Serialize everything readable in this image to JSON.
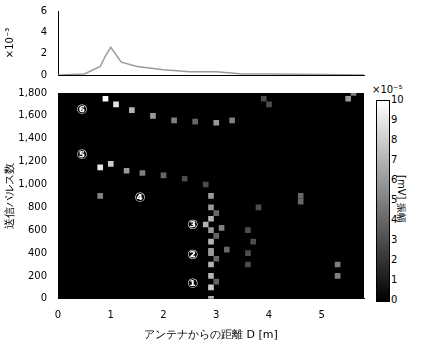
{
  "chart_data": [
    {
      "type": "line",
      "y_label": "×10⁻³",
      "x": [
        0,
        0.5,
        0.8,
        0.9,
        1.0,
        1.2,
        1.5,
        2.0,
        2.5,
        3.0,
        3.5,
        4.0,
        5.0,
        5.8
      ],
      "values": [
        0,
        0.1,
        0.8,
        1.8,
        2.6,
        1.2,
        0.8,
        0.5,
        0.3,
        0.3,
        0.1,
        0.1,
        0.05,
        0
      ],
      "color": "#9a9a9a",
      "xlim": [
        0,
        5.8
      ],
      "ylim": [
        0,
        6
      ],
      "yticks": [
        0,
        2,
        4,
        6
      ],
      "tick_labels": "y"
    },
    {
      "type": "heatmap",
      "x_label": "アンテナからの距離 D [m]",
      "y_label": "送信パルス数",
      "xlim": [
        0,
        5.8
      ],
      "xticks": [
        0,
        1,
        2,
        3,
        4,
        5
      ],
      "ylim": [
        0,
        1800
      ],
      "yticks": [
        0,
        200,
        400,
        600,
        800,
        1000,
        1200,
        1400,
        1600,
        1800
      ],
      "cells": [
        [
          2.9,
          0,
          7
        ],
        [
          2.9,
          100,
          8
        ],
        [
          2.9,
          200,
          7
        ],
        [
          2.9,
          300,
          7
        ],
        [
          2.9,
          400,
          6
        ],
        [
          2.9,
          500,
          7
        ],
        [
          2.9,
          600,
          6
        ],
        [
          2.9,
          700,
          7
        ],
        [
          2.9,
          800,
          6
        ],
        [
          2.9,
          900,
          6
        ],
        [
          3.0,
          150,
          4
        ],
        [
          3.0,
          350,
          4
        ],
        [
          3.0,
          550,
          4
        ],
        [
          3.0,
          750,
          4
        ],
        [
          3.6,
          300,
          3
        ],
        [
          3.6,
          400,
          3
        ],
        [
          3.7,
          500,
          3
        ],
        [
          3.6,
          600,
          3
        ],
        [
          2.8,
          650,
          7
        ],
        [
          3.1,
          620,
          5
        ],
        [
          2.9,
          420,
          6
        ],
        [
          3.2,
          430,
          4
        ],
        [
          0.8,
          1150,
          9
        ],
        [
          1.0,
          1180,
          8
        ],
        [
          1.3,
          1120,
          6
        ],
        [
          1.6,
          1100,
          5
        ],
        [
          2.0,
          1080,
          4
        ],
        [
          2.4,
          1050,
          3
        ],
        [
          2.8,
          1000,
          3
        ],
        [
          0.9,
          1750,
          10
        ],
        [
          1.1,
          1700,
          9
        ],
        [
          1.4,
          1650,
          7
        ],
        [
          1.8,
          1600,
          6
        ],
        [
          2.2,
          1560,
          5
        ],
        [
          2.6,
          1550,
          4
        ],
        [
          3.0,
          1540,
          6
        ],
        [
          3.3,
          1560,
          5
        ],
        [
          4.6,
          850,
          4
        ],
        [
          4.6,
          900,
          4
        ],
        [
          5.3,
          300,
          5
        ],
        [
          5.3,
          200,
          5
        ],
        [
          5.5,
          1750,
          6
        ],
        [
          5.6,
          1800,
          5
        ],
        [
          3.9,
          1750,
          3
        ],
        [
          4.0,
          1700,
          3
        ],
        [
          3.8,
          800,
          3
        ],
        [
          0.8,
          900,
          5
        ]
      ],
      "colorbar": {
        "label": "[mV] 振幅",
        "exponent_label": "×10⁻⁵",
        "range": [
          0,
          10
        ],
        "ticks": [
          0,
          1,
          2,
          3,
          4,
          5,
          6,
          7,
          8,
          9,
          10
        ]
      },
      "annotations": [
        {
          "text": "①",
          "x": 2.55,
          "y": 120
        },
        {
          "text": "②",
          "x": 2.55,
          "y": 380
        },
        {
          "text": "③",
          "x": 2.55,
          "y": 640
        },
        {
          "text": "④",
          "x": 1.55,
          "y": 880
        },
        {
          "text": "⑤",
          "x": 0.45,
          "y": 1250
        },
        {
          "text": "⑥",
          "x": 0.45,
          "y": 1650
        }
      ]
    }
  ]
}
